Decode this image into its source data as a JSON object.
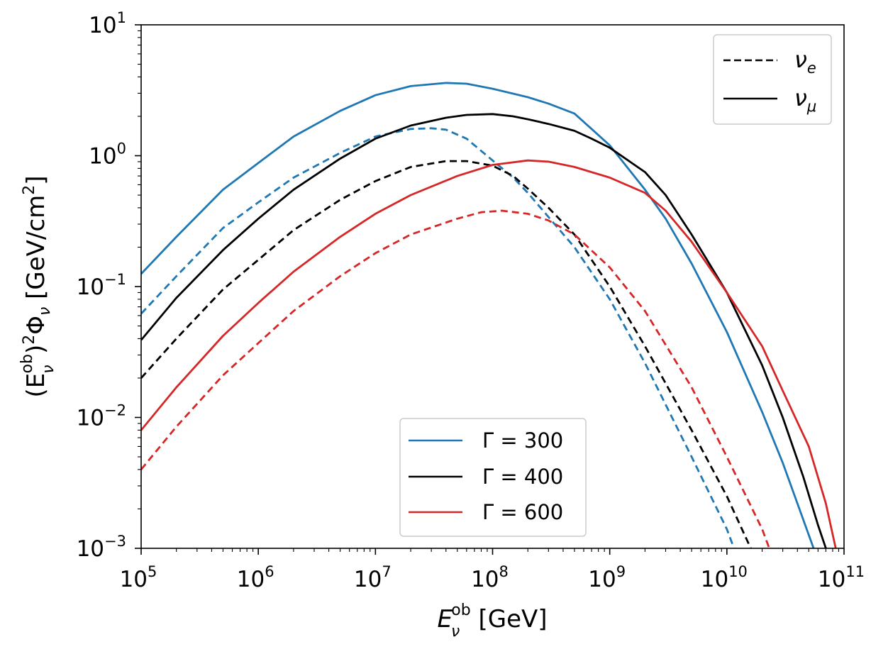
{
  "chart_data": {
    "type": "line",
    "title": "",
    "xscale": "log",
    "yscale": "log",
    "xlim": [
      100000,
      100000000000
    ],
    "ylim": [
      0.001,
      10
    ],
    "xlabel": {
      "main": "E",
      "sub": "ν",
      "sup": "ob",
      "unit": " [GeV]"
    },
    "ylabel": {
      "prefix": "(E",
      "sub": "ν",
      "sup": "ob",
      "mid": ")",
      "sup2": "2",
      "phi": "Φ",
      "phisub": "ν",
      "unit": " [GeV/cm",
      "unitsup": "2",
      "end": "]"
    },
    "x_ticks": [
      {
        "base": "10",
        "exp": "5"
      },
      {
        "base": "10",
        "exp": "6"
      },
      {
        "base": "10",
        "exp": "7"
      },
      {
        "base": "10",
        "exp": "8"
      },
      {
        "base": "10",
        "exp": "9"
      },
      {
        "base": "10",
        "exp": "10"
      },
      {
        "base": "10",
        "exp": "11"
      }
    ],
    "y_ticks": [
      {
        "base": "10",
        "exp": "−3"
      },
      {
        "base": "10",
        "exp": "−2"
      },
      {
        "base": "10",
        "exp": "−1"
      },
      {
        "base": "10",
        "exp": "0"
      },
      {
        "base": "10",
        "exp": "1"
      }
    ],
    "grid": false,
    "colors": {
      "gamma300": "#1f77b4",
      "gamma400": "#000000",
      "gamma600": "#d62728"
    },
    "series": [
      {
        "name": "Γ = 300, ν_μ",
        "color": "#1f77b4",
        "style": "solid",
        "x": [
          100000.0,
          200000.0,
          500000.0,
          1000000.0,
          2000000.0,
          5000000.0,
          10000000.0,
          20000000.0,
          40000000.0,
          60000000.0,
          100000000.0,
          200000000.0,
          300000000.0,
          500000000.0,
          700000000.0,
          1000000000.0,
          2000000000.0,
          3000000000.0,
          5000000000.0,
          10000000000.0,
          20000000000.0,
          30000000000.0,
          40000000000.0,
          55000000000.0
        ],
        "y": [
          0.125,
          0.24,
          0.55,
          0.88,
          1.4,
          2.2,
          2.9,
          3.4,
          3.6,
          3.55,
          3.25,
          2.8,
          2.5,
          2.1,
          1.6,
          1.2,
          0.55,
          0.33,
          0.15,
          0.045,
          0.011,
          0.0045,
          0.0022,
          0.001
        ]
      },
      {
        "name": "Γ = 300, ν_e",
        "color": "#1f77b4",
        "style": "dashed",
        "x": [
          100000.0,
          200000.0,
          500000.0,
          1000000.0,
          2000000.0,
          5000000.0,
          10000000.0,
          20000000.0,
          30000000.0,
          40000000.0,
          60000000.0,
          100000000.0,
          150000000.0,
          200000000.0,
          300000000.0,
          500000000.0,
          1000000000.0,
          2000000000.0,
          5000000000.0,
          10000000000.0,
          11500000000.0
        ],
        "y": [
          0.062,
          0.12,
          0.28,
          0.44,
          0.68,
          1.05,
          1.4,
          1.6,
          1.62,
          1.58,
          1.35,
          0.92,
          0.68,
          0.52,
          0.34,
          0.2,
          0.08,
          0.026,
          0.005,
          0.0014,
          0.001
        ]
      },
      {
        "name": "Γ = 400, ν_μ",
        "color": "#000000",
        "style": "solid",
        "x": [
          100000.0,
          200000.0,
          500000.0,
          1000000.0,
          2000000.0,
          5000000.0,
          10000000.0,
          20000000.0,
          40000000.0,
          60000000.0,
          100000000.0,
          150000000.0,
          200000000.0,
          300000000.0,
          500000000.0,
          700000000.0,
          1000000000.0,
          2000000000.0,
          3000000000.0,
          5000000000.0,
          10000000000.0,
          20000000000.0,
          30000000000.0,
          45000000000.0,
          60000000000.0,
          70000000000.0
        ],
        "y": [
          0.039,
          0.082,
          0.19,
          0.33,
          0.55,
          0.95,
          1.35,
          1.7,
          1.95,
          2.05,
          2.08,
          2.0,
          1.9,
          1.75,
          1.55,
          1.35,
          1.15,
          0.75,
          0.5,
          0.25,
          0.09,
          0.025,
          0.01,
          0.0035,
          0.0015,
          0.001
        ]
      },
      {
        "name": "Γ = 400, ν_e",
        "color": "#000000",
        "style": "dashed",
        "x": [
          100000.0,
          200000.0,
          500000.0,
          1000000.0,
          2000000.0,
          5000000.0,
          10000000.0,
          20000000.0,
          40000000.0,
          60000000.0,
          100000000.0,
          150000000.0,
          200000000.0,
          300000000.0,
          500000000.0,
          1000000000.0,
          2000000000.0,
          5000000000.0,
          10000000000.0,
          16000000000.0
        ],
        "y": [
          0.02,
          0.04,
          0.095,
          0.16,
          0.27,
          0.46,
          0.64,
          0.82,
          0.91,
          0.91,
          0.84,
          0.7,
          0.56,
          0.4,
          0.25,
          0.1,
          0.035,
          0.008,
          0.0025,
          0.001
        ]
      },
      {
        "name": "Γ = 600, ν_μ",
        "color": "#d62728",
        "style": "solid",
        "x": [
          100000.0,
          200000.0,
          500000.0,
          1000000.0,
          2000000.0,
          5000000.0,
          10000000.0,
          20000000.0,
          50000000.0,
          100000000.0,
          200000000.0,
          300000000.0,
          500000000.0,
          1000000000.0,
          2000000000.0,
          3000000000.0,
          5000000000.0,
          10000000000.0,
          20000000000.0,
          30000000000.0,
          50000000000.0,
          70000000000.0,
          85000000000.0
        ],
        "y": [
          0.008,
          0.017,
          0.042,
          0.075,
          0.13,
          0.24,
          0.36,
          0.5,
          0.7,
          0.85,
          0.92,
          0.9,
          0.82,
          0.68,
          0.52,
          0.38,
          0.22,
          0.09,
          0.035,
          0.016,
          0.006,
          0.0022,
          0.001
        ]
      },
      {
        "name": "Γ = 600, ν_e",
        "color": "#d62728",
        "style": "dashed",
        "x": [
          100000.0,
          200000.0,
          500000.0,
          1000000.0,
          2000000.0,
          5000000.0,
          10000000.0,
          20000000.0,
          50000000.0,
          80000000.0,
          120000000.0,
          200000000.0,
          300000000.0,
          500000000.0,
          1000000000.0,
          2000000000.0,
          5000000000.0,
          10000000000.0,
          20000000000.0,
          23000000000.0
        ],
        "y": [
          0.004,
          0.0085,
          0.021,
          0.037,
          0.065,
          0.12,
          0.18,
          0.25,
          0.33,
          0.37,
          0.38,
          0.36,
          0.32,
          0.25,
          0.14,
          0.065,
          0.017,
          0.005,
          0.0014,
          0.001
        ]
      }
    ],
    "legend_linestyle": {
      "location": "top-right",
      "entries": [
        {
          "label_main": "ν",
          "label_sub": "e",
          "color": "#000000",
          "style": "dashed"
        },
        {
          "label_main": "ν",
          "label_sub": "μ",
          "color": "#000000",
          "style": "solid"
        }
      ]
    },
    "legend_gamma": {
      "location": "bottom-center",
      "entries": [
        {
          "label": "Γ = 300",
          "color": "#1f77b4"
        },
        {
          "label": "Γ = 400",
          "color": "#000000"
        },
        {
          "label": "Γ = 600",
          "color": "#d62728"
        }
      ]
    }
  }
}
